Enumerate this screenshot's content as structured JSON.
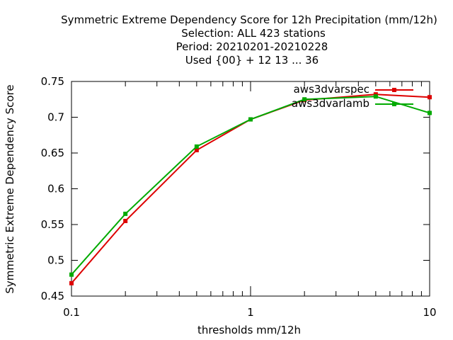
{
  "chart_data": {
    "type": "line",
    "title_lines": [
      "Symmetric Extreme Dependency Score  for 12h Precipitation (mm/12h)",
      "Selection: ALL    423 stations",
      "Period: 20210201-20210228",
      "Used {00} + 12 13 ... 36"
    ],
    "xlabel": "thresholds mm/12h",
    "ylabel": "Symmetric Extreme Dependency Score",
    "x_scale": "log",
    "xlim": [
      0.1,
      10
    ],
    "ylim": [
      0.45,
      0.75
    ],
    "x_ticks": [
      0.1,
      1,
      10
    ],
    "x_tick_labels": [
      "0.1",
      "1",
      "10"
    ],
    "y_ticks": [
      0.45,
      0.5,
      0.55,
      0.6,
      0.65,
      0.7,
      0.75
    ],
    "y_tick_labels": [
      "0.45",
      "0.5",
      "0.55",
      "0.6",
      "0.65",
      "0.7",
      "0.75"
    ],
    "grid": false,
    "legend_position": "top-right",
    "series": [
      {
        "name": "aws3dvarspec",
        "color": "#dd0000",
        "x": [
          0.1,
          0.2,
          0.5,
          1,
          2,
          5,
          10
        ],
        "y": [
          0.468,
          0.555,
          0.654,
          0.697,
          0.724,
          0.732,
          0.728
        ]
      },
      {
        "name": "aws3dvarlamb",
        "color": "#00aa00",
        "x": [
          0.1,
          0.2,
          0.5,
          1,
          2,
          5,
          10
        ],
        "y": [
          0.48,
          0.565,
          0.659,
          0.697,
          0.725,
          0.729,
          0.706
        ]
      }
    ]
  }
}
